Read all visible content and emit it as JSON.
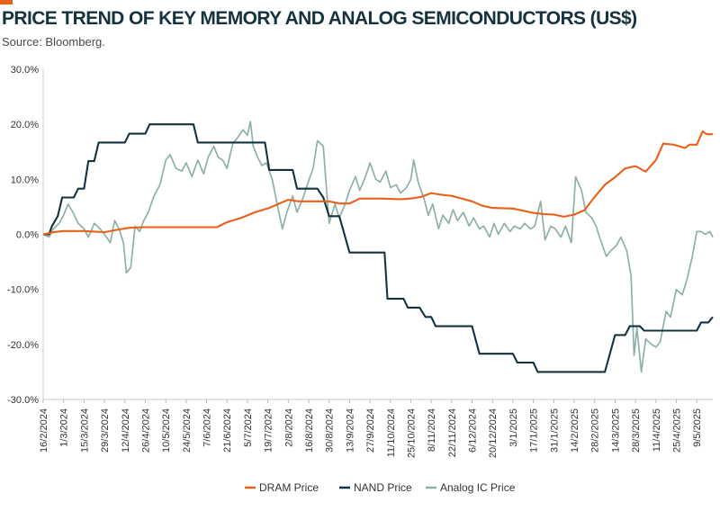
{
  "header": {
    "title": "PRICE TREND OF KEY MEMORY AND ANALOG SEMICONDUCTORS (US$)",
    "source": "Source: Bloomberg.",
    "accent_color": "#e8611a"
  },
  "chart_data": {
    "type": "line",
    "title": "PRICE TREND OF KEY MEMORY AND ANALOG SEMICONDUCTORS (US$)",
    "xlabel": "",
    "ylabel": "",
    "ylim": [
      -30,
      30
    ],
    "yticks": [
      30,
      20,
      10,
      0,
      -10,
      -20,
      -30
    ],
    "ytick_labels": [
      "30.0%",
      "20.0%",
      "10.0%",
      "0.0%",
      "-10.0%",
      "-20.0%",
      "-30.0%"
    ],
    "x_range": [
      "2024-02-16",
      "2025-05-20"
    ],
    "xtick_labels": [
      "16/2/2024",
      "1/3/2024",
      "15/3/2024",
      "29/3/2024",
      "12/4/2024",
      "26/4/2024",
      "10/5/2024",
      "24/5/2024",
      "7/6/2024",
      "21/6/2024",
      "5/7/2024",
      "19/7/2024",
      "2/8/2024",
      "16/8/2024",
      "30/8/2024",
      "13/9/2024",
      "27/9/2024",
      "11/10/2024",
      "25/10/2024",
      "8/11/2024",
      "22/11/2024",
      "6/12/2024",
      "20/12/2024",
      "3/1/2025",
      "17/1/2025",
      "31/1/2025",
      "14/2/2025",
      "28/2/2025",
      "14/3/2025",
      "28/3/2025",
      "11/4/2025",
      "25/4/2025",
      "9/5/2025"
    ],
    "grid": false,
    "legend_placement": "bottom-center",
    "series": [
      {
        "name": "DRAM Price",
        "color": "#e8611a",
        "points": [
          [
            "2024-02-16",
            0
          ],
          [
            "2024-02-23",
            0.4
          ],
          [
            "2024-03-01",
            0.6
          ],
          [
            "2024-03-15",
            0.6
          ],
          [
            "2024-03-29",
            0.4
          ],
          [
            "2024-04-08",
            0.9
          ],
          [
            "2024-04-15",
            1.2
          ],
          [
            "2024-04-26",
            1.3
          ],
          [
            "2024-05-10",
            1.3
          ],
          [
            "2024-05-24",
            1.3
          ],
          [
            "2024-06-07",
            1.3
          ],
          [
            "2024-06-14",
            1.3
          ],
          [
            "2024-06-21",
            2.2
          ],
          [
            "2024-07-01",
            3.0
          ],
          [
            "2024-07-10",
            4.0
          ],
          [
            "2024-07-20",
            4.8
          ],
          [
            "2024-07-27",
            5.6
          ],
          [
            "2024-08-02",
            6.3
          ],
          [
            "2024-08-09",
            6.0
          ],
          [
            "2024-08-23",
            6.0
          ],
          [
            "2024-08-30",
            6.0
          ],
          [
            "2024-09-06",
            5.6
          ],
          [
            "2024-09-13",
            5.6
          ],
          [
            "2024-09-20",
            6.5
          ],
          [
            "2024-10-04",
            6.5
          ],
          [
            "2024-10-18",
            6.4
          ],
          [
            "2024-10-25",
            6.5
          ],
          [
            "2024-11-01",
            6.8
          ],
          [
            "2024-11-08",
            7.5
          ],
          [
            "2024-11-15",
            7.2
          ],
          [
            "2024-11-22",
            7.0
          ],
          [
            "2024-12-06",
            6.0
          ],
          [
            "2024-12-13",
            5.2
          ],
          [
            "2024-12-20",
            4.8
          ],
          [
            "2025-01-03",
            4.7
          ],
          [
            "2025-01-17",
            3.9
          ],
          [
            "2025-01-24",
            3.7
          ],
          [
            "2025-01-31",
            3.6
          ],
          [
            "2025-02-07",
            3.2
          ],
          [
            "2025-02-14",
            3.6
          ],
          [
            "2025-02-21",
            4.4
          ],
          [
            "2025-02-28",
            6.8
          ],
          [
            "2025-03-07",
            9.0
          ],
          [
            "2025-03-14",
            10.4
          ],
          [
            "2025-03-21",
            12.0
          ],
          [
            "2025-03-28",
            12.4
          ],
          [
            "2025-04-04",
            11.4
          ],
          [
            "2025-04-11",
            13.5
          ],
          [
            "2025-04-16",
            16.5
          ],
          [
            "2025-04-23",
            16.3
          ],
          [
            "2025-05-01",
            15.7
          ],
          [
            "2025-05-04",
            16.3
          ],
          [
            "2025-05-09",
            16.3
          ],
          [
            "2025-05-13",
            18.7
          ],
          [
            "2025-05-16",
            18.2
          ],
          [
            "2025-05-20",
            18.2
          ]
        ]
      },
      {
        "name": "NAND Price",
        "color": "#15323f",
        "points": [
          [
            "2024-02-16",
            0
          ],
          [
            "2024-02-20",
            0
          ],
          [
            "2024-02-22",
            1.5
          ],
          [
            "2024-02-26",
            3.3
          ],
          [
            "2024-02-29",
            6.7
          ],
          [
            "2024-03-08",
            6.7
          ],
          [
            "2024-03-11",
            8.3
          ],
          [
            "2024-03-15",
            8.3
          ],
          [
            "2024-03-18",
            13.3
          ],
          [
            "2024-03-22",
            13.3
          ],
          [
            "2024-03-25",
            16.7
          ],
          [
            "2024-04-12",
            16.7
          ],
          [
            "2024-04-15",
            18.3
          ],
          [
            "2024-04-26",
            18.3
          ],
          [
            "2024-04-29",
            20.0
          ],
          [
            "2024-05-29",
            20.0
          ],
          [
            "2024-06-01",
            16.7
          ],
          [
            "2024-07-17",
            16.7
          ],
          [
            "2024-07-20",
            11.7
          ],
          [
            "2024-08-05",
            11.7
          ],
          [
            "2024-08-08",
            8.3
          ],
          [
            "2024-08-22",
            8.3
          ],
          [
            "2024-08-26",
            6.7
          ],
          [
            "2024-08-28",
            5.0
          ],
          [
            "2024-08-30",
            3.3
          ],
          [
            "2024-09-06",
            3.3
          ],
          [
            "2024-09-13",
            -3.3
          ],
          [
            "2024-10-07",
            -3.3
          ],
          [
            "2024-10-09",
            -11.7
          ],
          [
            "2024-10-20",
            -11.7
          ],
          [
            "2024-10-23",
            -13.3
          ],
          [
            "2024-10-31",
            -13.3
          ],
          [
            "2024-11-04",
            -15.0
          ],
          [
            "2024-11-08",
            -15.0
          ],
          [
            "2024-11-11",
            -16.7
          ],
          [
            "2024-12-06",
            -16.7
          ],
          [
            "2024-12-11",
            -21.7
          ],
          [
            "2025-01-03",
            -21.7
          ],
          [
            "2025-01-06",
            -23.3
          ],
          [
            "2025-01-17",
            -23.3
          ],
          [
            "2025-01-20",
            -25.0
          ],
          [
            "2025-03-07",
            -25.0
          ],
          [
            "2025-03-14",
            -18.3
          ],
          [
            "2025-03-21",
            -18.3
          ],
          [
            "2025-03-24",
            -16.7
          ],
          [
            "2025-03-31",
            -16.7
          ],
          [
            "2025-04-03",
            -17.5
          ],
          [
            "2025-05-09",
            -17.5
          ],
          [
            "2025-05-12",
            -16.0
          ],
          [
            "2025-05-17",
            -16.0
          ],
          [
            "2025-05-20",
            -15.0
          ]
        ]
      },
      {
        "name": "Analog IC Price",
        "color": "#8fb0aa",
        "points": [
          [
            "2024-02-16",
            0
          ],
          [
            "2024-02-20",
            -0.5
          ],
          [
            "2024-02-23",
            1.0
          ],
          [
            "2024-02-27",
            2.0
          ],
          [
            "2024-03-01",
            3.5
          ],
          [
            "2024-03-04",
            5.5
          ],
          [
            "2024-03-07",
            4.2
          ],
          [
            "2024-03-11",
            2.0
          ],
          [
            "2024-03-15",
            1.0
          ],
          [
            "2024-03-18",
            -0.5
          ],
          [
            "2024-03-22",
            2.0
          ],
          [
            "2024-03-26",
            1.0
          ],
          [
            "2024-03-29",
            0.0
          ],
          [
            "2024-04-02",
            -1.5
          ],
          [
            "2024-04-05",
            2.5
          ],
          [
            "2024-04-08",
            1.0
          ],
          [
            "2024-04-11",
            -1.5
          ],
          [
            "2024-04-13",
            -7.0
          ],
          [
            "2024-04-16",
            -6.0
          ],
          [
            "2024-04-19",
            1.5
          ],
          [
            "2024-04-22",
            0.5
          ],
          [
            "2024-04-25",
            2.5
          ],
          [
            "2024-04-28",
            4.0
          ],
          [
            "2024-05-02",
            7.0
          ],
          [
            "2024-05-06",
            9.0
          ],
          [
            "2024-05-10",
            13.5
          ],
          [
            "2024-05-13",
            14.5
          ],
          [
            "2024-05-17",
            12.0
          ],
          [
            "2024-05-21",
            11.5
          ],
          [
            "2024-05-24",
            13.0
          ],
          [
            "2024-05-28",
            10.5
          ],
          [
            "2024-06-01",
            13.5
          ],
          [
            "2024-06-05",
            11.0
          ],
          [
            "2024-06-08",
            14.0
          ],
          [
            "2024-06-12",
            16.0
          ],
          [
            "2024-06-15",
            14.0
          ],
          [
            "2024-06-18",
            13.5
          ],
          [
            "2024-06-21",
            12.0
          ],
          [
            "2024-06-25",
            16.5
          ],
          [
            "2024-06-28",
            17.5
          ],
          [
            "2024-07-02",
            19.0
          ],
          [
            "2024-07-05",
            18.0
          ],
          [
            "2024-07-07",
            20.5
          ],
          [
            "2024-07-09",
            16.0
          ],
          [
            "2024-07-12",
            14.0
          ],
          [
            "2024-07-15",
            12.5
          ],
          [
            "2024-07-18",
            13.0
          ],
          [
            "2024-07-22",
            10.0
          ],
          [
            "2024-07-25",
            6.0
          ],
          [
            "2024-07-29",
            1.0
          ],
          [
            "2024-08-01",
            4.0
          ],
          [
            "2024-08-05",
            7.0
          ],
          [
            "2024-08-08",
            4.0
          ],
          [
            "2024-08-12",
            6.5
          ],
          [
            "2024-08-15",
            9.0
          ],
          [
            "2024-08-19",
            12.0
          ],
          [
            "2024-08-22",
            17.0
          ],
          [
            "2024-08-26",
            16.0
          ],
          [
            "2024-08-30",
            2.0
          ],
          [
            "2024-09-03",
            5.5
          ],
          [
            "2024-09-06",
            3.0
          ],
          [
            "2024-09-10",
            5.5
          ],
          [
            "2024-09-13",
            8.0
          ],
          [
            "2024-09-17",
            10.5
          ],
          [
            "2024-09-20",
            8.0
          ],
          [
            "2024-09-24",
            10.5
          ],
          [
            "2024-09-27",
            13.0
          ],
          [
            "2024-10-01",
            10.0
          ],
          [
            "2024-10-04",
            9.5
          ],
          [
            "2024-10-08",
            11.5
          ],
          [
            "2024-10-11",
            8.5
          ],
          [
            "2024-10-15",
            9.0
          ],
          [
            "2024-10-18",
            7.5
          ],
          [
            "2024-10-22",
            8.5
          ],
          [
            "2024-10-25",
            10.0
          ],
          [
            "2024-10-27",
            13.5
          ],
          [
            "2024-10-30",
            9.5
          ],
          [
            "2024-11-03",
            6.5
          ],
          [
            "2024-11-06",
            3.5
          ],
          [
            "2024-11-09",
            5.5
          ],
          [
            "2024-11-13",
            1.0
          ],
          [
            "2024-11-16",
            3.5
          ],
          [
            "2024-11-20",
            2.0
          ],
          [
            "2024-11-23",
            4.5
          ],
          [
            "2024-11-26",
            2.5
          ],
          [
            "2024-11-30",
            4.0
          ],
          [
            "2024-12-04",
            1.5
          ],
          [
            "2024-12-07",
            3.0
          ],
          [
            "2024-12-11",
            1.0
          ],
          [
            "2024-12-14",
            1.5
          ],
          [
            "2024-12-18",
            -0.5
          ],
          [
            "2024-12-21",
            2.0
          ],
          [
            "2024-12-24",
            0.0
          ],
          [
            "2024-12-28",
            2.0
          ],
          [
            "2025-01-01",
            0.5
          ],
          [
            "2025-01-04",
            1.5
          ],
          [
            "2025-01-08",
            1.0
          ],
          [
            "2025-01-11",
            2.0
          ],
          [
            "2025-01-15",
            1.0
          ],
          [
            "2025-01-18",
            1.5
          ],
          [
            "2025-01-22",
            6.0
          ],
          [
            "2025-01-25",
            -1.0
          ],
          [
            "2025-01-29",
            1.5
          ],
          [
            "2025-02-01",
            1.0
          ],
          [
            "2025-02-05",
            -0.5
          ],
          [
            "2025-02-08",
            1.5
          ],
          [
            "2025-02-12",
            -1.5
          ],
          [
            "2025-02-15",
            10.5
          ],
          [
            "2025-02-19",
            8.0
          ],
          [
            "2025-02-22",
            4.0
          ],
          [
            "2025-02-26",
            3.0
          ],
          [
            "2025-03-01",
            1.5
          ],
          [
            "2025-03-04",
            -1.0
          ],
          [
            "2025-03-08",
            -4.0
          ],
          [
            "2025-03-11",
            -3.0
          ],
          [
            "2025-03-15",
            -2.0
          ],
          [
            "2025-03-18",
            -0.5
          ],
          [
            "2025-03-22",
            -3.0
          ],
          [
            "2025-03-25",
            -7.5
          ],
          [
            "2025-03-27",
            -22.0
          ],
          [
            "2025-03-29",
            -17.0
          ],
          [
            "2025-04-01",
            -25.0
          ],
          [
            "2025-04-04",
            -19.0
          ],
          [
            "2025-04-08",
            -20.0
          ],
          [
            "2025-04-11",
            -20.5
          ],
          [
            "2025-04-14",
            -19.5
          ],
          [
            "2025-04-18",
            -14.0
          ],
          [
            "2025-04-21",
            -15.0
          ],
          [
            "2025-04-25",
            -10.0
          ],
          [
            "2025-04-29",
            -11.0
          ],
          [
            "2025-05-02",
            -8.5
          ],
          [
            "2025-05-06",
            -4.0
          ],
          [
            "2025-05-09",
            0.5
          ],
          [
            "2025-05-12",
            0.5
          ],
          [
            "2025-05-15",
            0.0
          ],
          [
            "2025-05-18",
            0.5
          ],
          [
            "2025-05-20",
            -0.5
          ]
        ]
      }
    ]
  }
}
